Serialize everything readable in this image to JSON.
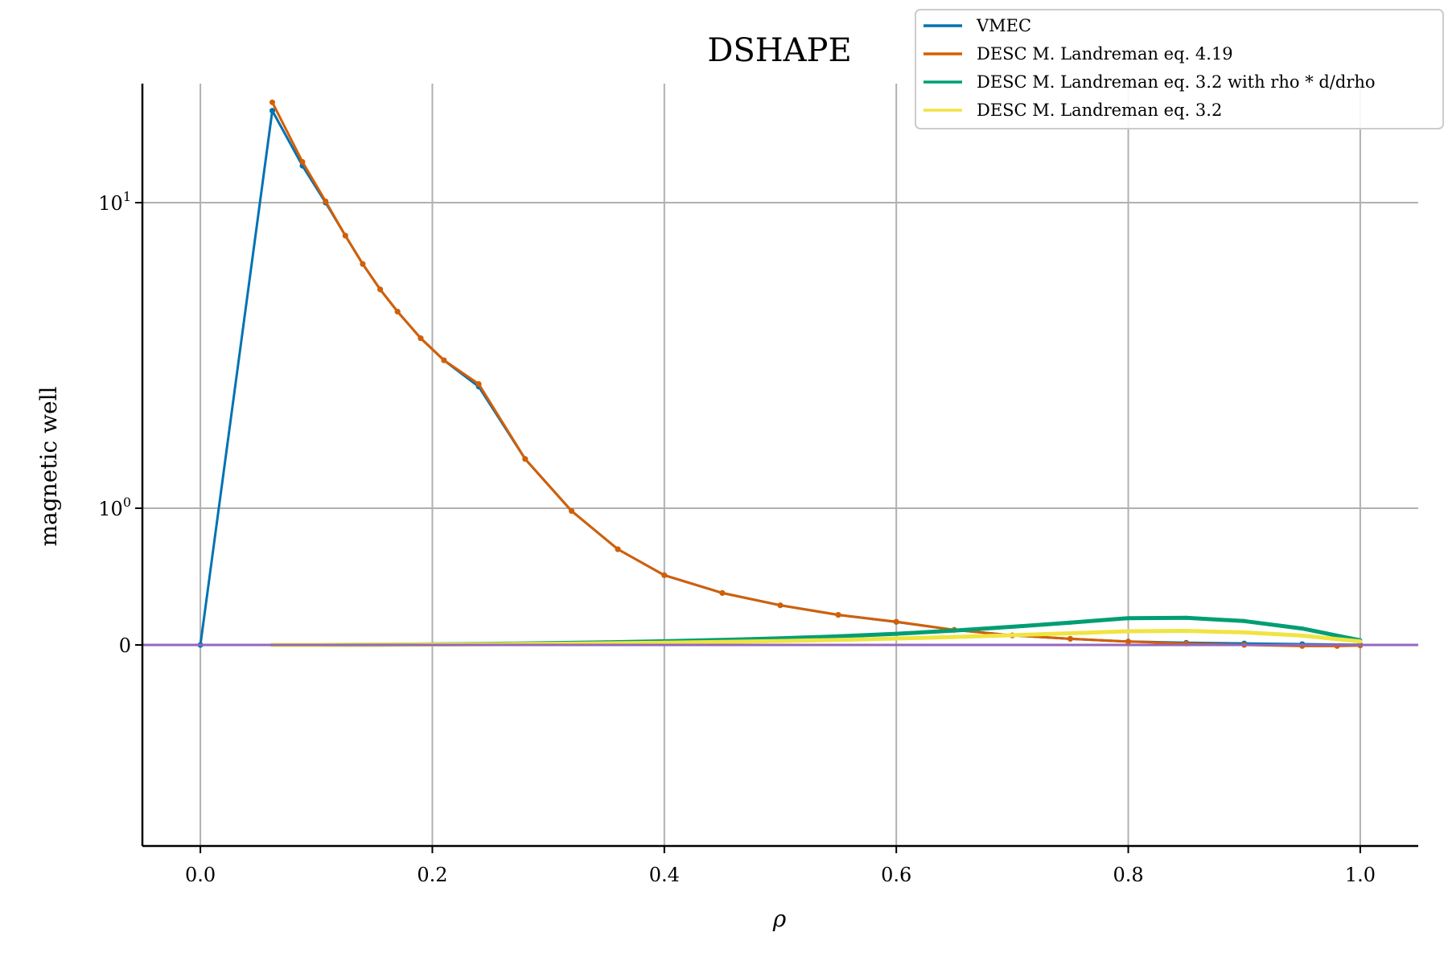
{
  "chart_data": {
    "type": "line",
    "title": "DSHAPE",
    "xlabel": "ρ",
    "ylabel": "magnetic well",
    "xlim": [
      -0.05,
      1.05
    ],
    "x_ticks": [
      0.0,
      0.2,
      0.4,
      0.6,
      0.8,
      1.0
    ],
    "x_tick_labels": [
      "0.0",
      "0.2",
      "0.4",
      "0.6",
      "0.8",
      "1.0"
    ],
    "y_scale": "symlog",
    "y_ticks": [
      0,
      1,
      10
    ],
    "y_tick_labels": [
      {
        "base": "0",
        "exp": ""
      },
      {
        "base": "10",
        "exp": "0"
      },
      {
        "base": "10",
        "exp": "1"
      }
    ],
    "grid": true,
    "legend_position": "top-right",
    "zero_line_color": "#9467bd",
    "series": [
      {
        "name": "VMEC",
        "color": "#0072b2",
        "markers": true,
        "x": [
          0.0,
          0.062,
          0.088,
          0.108,
          0.125,
          0.14,
          0.155,
          0.17,
          0.19,
          0.21,
          0.24,
          0.28,
          0.32,
          0.36,
          0.4,
          0.45,
          0.5,
          0.55,
          0.6,
          0.65,
          0.7,
          0.75,
          0.8,
          0.85,
          0.9,
          0.95,
          1.0
        ],
        "y": [
          0.0,
          20.0,
          13.2,
          10.0,
          7.8,
          6.3,
          5.2,
          4.4,
          3.6,
          3.05,
          2.5,
          1.45,
          0.98,
          0.7,
          0.51,
          0.38,
          0.29,
          0.22,
          0.168,
          0.11,
          0.07,
          0.045,
          0.025,
          0.016,
          0.011,
          0.006,
          0.001
        ]
      },
      {
        "name": "DESC M. Landreman eq. 4.19",
        "color": "#d55e00",
        "markers": true,
        "x": [
          0.062,
          0.088,
          0.108,
          0.125,
          0.14,
          0.155,
          0.17,
          0.19,
          0.21,
          0.24,
          0.28,
          0.32,
          0.36,
          0.4,
          0.45,
          0.5,
          0.55,
          0.6,
          0.65,
          0.7,
          0.75,
          0.8,
          0.85,
          0.9,
          0.95,
          0.98,
          1.0
        ],
        "y": [
          21.3,
          13.6,
          10.1,
          7.8,
          6.3,
          5.2,
          4.4,
          3.6,
          3.05,
          2.55,
          1.45,
          0.98,
          0.7,
          0.51,
          0.38,
          0.29,
          0.22,
          0.17,
          0.11,
          0.07,
          0.045,
          0.025,
          0.01,
          0.0,
          -0.008,
          -0.008,
          -0.004
        ]
      },
      {
        "name": "DESC M. Landreman eq. 3.2 with rho * d/drho",
        "color": "#009e73",
        "markers": true,
        "x": [
          0.062,
          0.1,
          0.15,
          0.2,
          0.25,
          0.3,
          0.35,
          0.4,
          0.45,
          0.5,
          0.55,
          0.6,
          0.65,
          0.7,
          0.75,
          0.8,
          0.85,
          0.9,
          0.95,
          1.0
        ],
        "y": [
          0.0,
          0.0,
          0.002,
          0.004,
          0.008,
          0.013,
          0.019,
          0.027,
          0.037,
          0.048,
          0.063,
          0.082,
          0.105,
          0.133,
          0.163,
          0.196,
          0.198,
          0.175,
          0.12,
          0.034
        ]
      },
      {
        "name": "DESC M. Landreman eq. 3.2",
        "color": "#f0e442",
        "markers": true,
        "x": [
          0.062,
          0.1,
          0.15,
          0.2,
          0.25,
          0.3,
          0.35,
          0.4,
          0.45,
          0.5,
          0.55,
          0.6,
          0.65,
          0.7,
          0.75,
          0.8,
          0.85,
          0.9,
          0.95,
          1.0
        ],
        "y": [
          0.0,
          0.0,
          0.001,
          0.003,
          0.005,
          0.008,
          0.012,
          0.016,
          0.022,
          0.029,
          0.037,
          0.047,
          0.058,
          0.071,
          0.085,
          0.1,
          0.103,
          0.092,
          0.068,
          0.026
        ]
      }
    ]
  }
}
